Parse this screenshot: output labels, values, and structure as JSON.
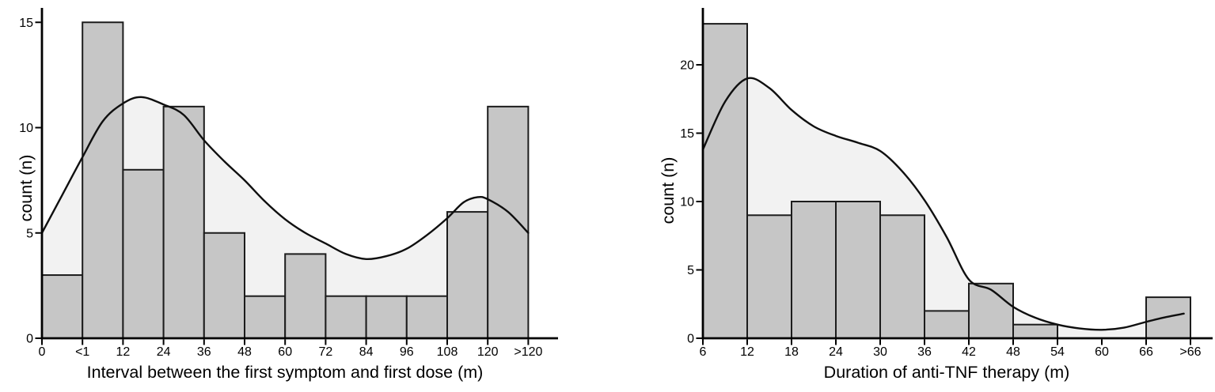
{
  "figure": {
    "background": "#ffffff",
    "description": "Two histograms with density curves"
  },
  "styles": {
    "area_fill": "#f2f2f2",
    "bar_fill": "#c6c6c6",
    "bar_stroke": "#1c1c1c",
    "curve_color": "#0f0f0f",
    "axis_color": "#000000",
    "text_color": "#000000"
  },
  "chart_data": [
    {
      "type": "bar",
      "subtype": "histogram-with-density-curve",
      "title": "",
      "xlabel": "Interval between the first symptom and first dose (m)",
      "ylabel": "count (n)",
      "bin_edge_labels": [
        "0",
        "<1",
        "12",
        "24",
        "36",
        "48",
        "60",
        "72",
        "84",
        "96",
        "108",
        "120",
        ">120"
      ],
      "values": [
        3,
        15,
        8,
        11,
        5,
        2,
        4,
        2,
        2,
        2,
        6,
        11
      ],
      "yticks": [
        0,
        5,
        10,
        15
      ],
      "ylim": [
        0,
        15.7
      ],
      "grid": false,
      "legend": null,
      "density_curve": {
        "x_bin_units": [
          0,
          0.5,
          1,
          1.5,
          2,
          2.45,
          3,
          3.5,
          4,
          4.5,
          5,
          5.5,
          6,
          6.5,
          7,
          7.5,
          8,
          8.5,
          9,
          9.5,
          10,
          10.4,
          10.75,
          11,
          11.5,
          12
        ],
        "y": [
          5.0,
          6.8,
          8.6,
          10.3,
          11.15,
          11.45,
          11.1,
          10.6,
          9.4,
          8.4,
          7.5,
          6.5,
          5.65,
          5.0,
          4.5,
          4.0,
          3.76,
          3.9,
          4.25,
          4.9,
          5.7,
          6.45,
          6.7,
          6.6,
          6.0,
          5.0
        ]
      }
    },
    {
      "type": "bar",
      "subtype": "histogram-with-density-curve",
      "title": "",
      "xlabel": "Duration of anti-TNF therapy (m)",
      "ylabel": "count (n)",
      "bin_edge_labels": [
        "6",
        "12",
        "18",
        "24",
        "30",
        "36",
        "42",
        "48",
        "54",
        "60",
        "66",
        ">66"
      ],
      "values": [
        23,
        9,
        10,
        10,
        9,
        2,
        4,
        1,
        0,
        0,
        3
      ],
      "yticks": [
        0,
        5,
        10,
        15,
        20
      ],
      "ylim": [
        0,
        24.2
      ],
      "grid": false,
      "legend": null,
      "density_curve": {
        "x_bin_units": [
          0,
          0.5,
          1,
          1.5,
          2,
          2.5,
          3,
          3.5,
          4,
          4.5,
          5,
          5.5,
          6,
          6.5,
          7,
          7.5,
          8,
          8.5,
          9,
          9.5,
          10,
          10.45,
          10.85
        ],
        "y": [
          13.8,
          17.3,
          19.0,
          18.3,
          16.7,
          15.5,
          14.8,
          14.3,
          13.7,
          12.2,
          10.1,
          7.4,
          4.3,
          3.55,
          2.3,
          1.5,
          1.0,
          0.72,
          0.62,
          0.78,
          1.2,
          1.55,
          1.8
        ]
      }
    }
  ]
}
